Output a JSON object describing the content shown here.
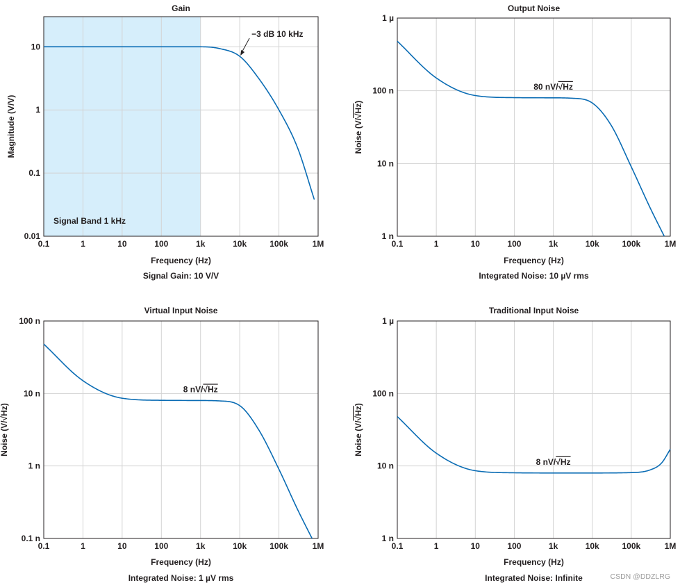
{
  "chart_data": [
    {
      "type": "line",
      "title": "Gain",
      "xlabel": "Frequency (Hz)",
      "ylabel": "Magnitude (V/V)",
      "caption": "Signal Gain: 10 V/V",
      "xscale": "log",
      "yscale": "log",
      "xlim": [
        0.1,
        1000000
      ],
      "ylim": [
        0.01,
        30
      ],
      "xticks": [
        0.1,
        1,
        10,
        100,
        1000,
        10000,
        100000,
        1000000
      ],
      "xtick_labels": [
        "0.1",
        "1",
        "10",
        "100",
        "1k",
        "10k",
        "100k",
        "1M"
      ],
      "yticks": [
        0.01,
        0.1,
        1,
        10
      ],
      "ytick_labels": [
        "0.01",
        "0.1",
        "1",
        "10"
      ],
      "color": "#0a6cb4",
      "shade_color": "#d6eefb",
      "shaded_band": {
        "from": 0.1,
        "to": 1000,
        "label": "Signal Band 1 kHz"
      },
      "annotation": {
        "text": "−3 dB 10 kHz",
        "x": 10000,
        "y": 7.07
      },
      "series": [
        {
          "name": "Gain",
          "x": [
            0.1,
            10,
            1000,
            3000,
            10000,
            30000,
            100000,
            300000,
            800000
          ],
          "values": [
            10,
            10,
            10,
            9.4,
            7.07,
            3.2,
            1.0,
            0.25,
            0.038
          ]
        }
      ]
    },
    {
      "type": "line",
      "title": "Output Noise",
      "xlabel": "Frequency (Hz)",
      "ylabel_main": "Noise (V/",
      "ylabel_sqrt": "Hz",
      "ylabel_end": ")",
      "caption": "Integrated Noise: 10 µV rms",
      "xscale": "log",
      "yscale": "log",
      "xlim": [
        0.1,
        1000000
      ],
      "ylim": [
        1e-09,
        1e-06
      ],
      "xticks": [
        0.1,
        1,
        10,
        100,
        1000,
        10000,
        100000,
        1000000
      ],
      "xtick_labels": [
        "0.1",
        "1",
        "10",
        "100",
        "1k",
        "10k",
        "100k",
        "1M"
      ],
      "yticks": [
        1e-09,
        1e-08,
        1e-07,
        1e-06
      ],
      "ytick_labels": [
        "1 n",
        "10 n",
        "100 n",
        "1 µ"
      ],
      "color": "#0a6cb4",
      "annotation": {
        "prefix": "80 nV/",
        "sqrt": "Hz",
        "x": 1000,
        "y": 8e-08
      },
      "series": [
        {
          "name": "Output Noise",
          "x": [
            0.1,
            1,
            10,
            100,
            1000,
            3000,
            10000,
            30000,
            100000,
            300000,
            700000
          ],
          "values": [
            4.8e-07,
            1.5e-07,
            8.6e-08,
            8.05e-08,
            8e-08,
            7.9e-08,
            6.8e-08,
            3.4e-08,
            9e-09,
            2.5e-09,
            1e-09
          ]
        }
      ]
    },
    {
      "type": "line",
      "title": "Virtual Input Noise",
      "xlabel": "Frequency (Hz)",
      "ylabel_main": "Noise (V/",
      "ylabel_sqrt": "Hz",
      "ylabel_end": ")",
      "caption": "Integrated Noise: 1 µV rms",
      "xscale": "log",
      "yscale": "log",
      "xlim": [
        0.1,
        1000000
      ],
      "ylim": [
        1e-10,
        1e-07
      ],
      "xticks": [
        0.1,
        1,
        10,
        100,
        1000,
        10000,
        100000,
        1000000
      ],
      "xtick_labels": [
        "0.1",
        "1",
        "10",
        "100",
        "1k",
        "10k",
        "100k",
        "1M"
      ],
      "yticks": [
        1e-10,
        1e-09,
        1e-08,
        1e-07
      ],
      "ytick_labels": [
        "0.1 n",
        "1 n",
        "10 n",
        "100 n"
      ],
      "color": "#0a6cb4",
      "annotation": {
        "prefix": "8 nV/",
        "sqrt": "Hz",
        "x": 1000,
        "y": 8e-09
      },
      "series": [
        {
          "name": "Virtual Input Noise",
          "x": [
            0.1,
            1,
            10,
            100,
            1000,
            3000,
            10000,
            30000,
            100000,
            300000,
            700000
          ],
          "values": [
            4.8e-08,
            1.5e-08,
            8.6e-09,
            8.05e-09,
            8e-09,
            7.9e-09,
            6.8e-09,
            3.2e-09,
            9e-10,
            2.5e-10,
            1e-10
          ]
        }
      ]
    },
    {
      "type": "line",
      "title": "Traditional Input Noise",
      "xlabel": "Frequency (Hz)",
      "ylabel_main": "Noise (V/",
      "ylabel_sqrt": "Hz",
      "ylabel_end": ")",
      "caption": "Integrated Noise: Infinite",
      "xscale": "log",
      "yscale": "log",
      "xlim": [
        0.1,
        1000000
      ],
      "ylim": [
        1e-09,
        1e-06
      ],
      "xticks": [
        0.1,
        1,
        10,
        100,
        1000,
        10000,
        100000,
        1000000
      ],
      "xtick_labels": [
        "0.1",
        "1",
        "10",
        "100",
        "1k",
        "10k",
        "100k",
        "1M"
      ],
      "yticks": [
        1e-09,
        1e-08,
        1e-07,
        1e-06
      ],
      "ytick_labels": [
        "1 n",
        "10 n",
        "100 n",
        "1 µ"
      ],
      "color": "#0a6cb4",
      "annotation": {
        "prefix": "8 nV/",
        "sqrt": "Hz",
        "x": 1000,
        "y": 8e-09
      },
      "series": [
        {
          "name": "Traditional Input Noise",
          "x": [
            0.1,
            1,
            10,
            100,
            1000,
            10000,
            100000,
            300000,
            600000,
            1000000
          ],
          "values": [
            4.8e-08,
            1.5e-08,
            8.6e-09,
            8.05e-09,
            8e-09,
            8e-09,
            8.1e-09,
            8.8e-09,
            1.1e-08,
            1.7e-08
          ]
        }
      ]
    }
  ],
  "watermark": "CSDN @DDZLRG"
}
